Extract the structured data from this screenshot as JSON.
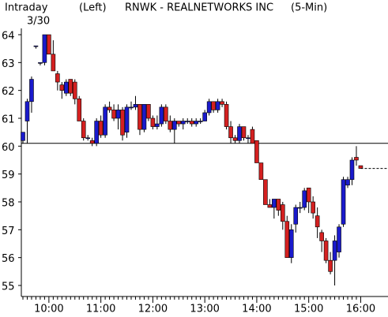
{
  "chart_data": {
    "type": "candlestick",
    "title": "RNWK - REALNETWORKS INC",
    "subtitle": "Intraday",
    "date": "3/30",
    "axis_side": "(Left)",
    "interval": "(5-Min)",
    "categories": [
      null,
      null,
      null,
      null,
      null,
      null,
      "10:00",
      null,
      null,
      null,
      null,
      null,
      null,
      null,
      null,
      null,
      null,
      null,
      "11:00",
      null,
      null,
      null,
      null,
      null,
      null,
      null,
      null,
      null,
      null,
      null,
      "12:00",
      null,
      null,
      null,
      null,
      null,
      null,
      null,
      null,
      null,
      null,
      null,
      "13:00",
      null,
      null,
      null,
      null,
      null,
      null,
      null,
      null,
      null,
      null,
      null,
      "14:00",
      null,
      null,
      null,
      null,
      null,
      null,
      null,
      null,
      null,
      null,
      null,
      "15:00",
      null,
      null,
      null,
      null,
      null,
      null,
      null,
      null,
      null,
      null,
      null,
      "16:00"
    ],
    "open": [
      60.2,
      60.9,
      61.6,
      63.6,
      63.0,
      63.0,
      64.0,
      63.3,
      62.6,
      62.2,
      61.9,
      62.4,
      62.3,
      61.7,
      60.9,
      60.3,
      60.2,
      60.1,
      60.9,
      60.4,
      61.4,
      61.3,
      61.0,
      61.3,
      60.5,
      61.4,
      61.4,
      61.5,
      60.6,
      61.5,
      61.0,
      60.7,
      60.8,
      61.4,
      60.9,
      60.6,
      60.9,
      60.8,
      60.9,
      60.9,
      60.8,
      60.9,
      60.9,
      61.2,
      61.6,
      61.3,
      61.6,
      61.5,
      60.7,
      60.3,
      60.2,
      60.7,
      60.3,
      60.6,
      60.2,
      59.4,
      58.8,
      57.9,
      57.8,
      58.1,
      57.9,
      57.3,
      56.0,
      57.2,
      57.8,
      57.8,
      58.5,
      58.0,
      57.5,
      56.9,
      56.6,
      55.9,
      55.9,
      56.2,
      57.2,
      58.6,
      58.8,
      59.6,
      59.3
    ],
    "high": [
      60.5,
      61.7,
      62.5,
      63.6,
      63.0,
      64.0,
      64.0,
      63.8,
      62.7,
      62.3,
      62.4,
      62.4,
      62.4,
      61.8,
      61.0,
      60.4,
      60.3,
      61.0,
      61.1,
      61.5,
      61.6,
      61.5,
      61.5,
      61.4,
      61.5,
      61.6,
      61.8,
      61.5,
      61.5,
      61.5,
      61.1,
      61.1,
      61.5,
      61.5,
      61.1,
      61.0,
      60.9,
      61.0,
      61.0,
      61.0,
      61.0,
      61.0,
      61.3,
      61.7,
      61.6,
      61.7,
      61.7,
      61.6,
      60.9,
      60.4,
      60.8,
      60.7,
      60.4,
      60.7,
      60.2,
      59.4,
      58.8,
      58.1,
      58.1,
      58.1,
      58.0,
      57.5,
      57.2,
      57.9,
      58.0,
      58.5,
      58.5,
      58.2,
      57.8,
      57.0,
      56.7,
      56.2,
      56.8,
      57.2,
      58.9,
      58.9,
      59.6,
      60.0,
      59.3
    ],
    "low": [
      60.1,
      60.1,
      61.2,
      63.5,
      62.9,
      62.9,
      63.3,
      62.7,
      62.0,
      61.7,
      61.8,
      61.8,
      61.5,
      60.9,
      60.2,
      60.2,
      60.0,
      60.0,
      60.3,
      60.3,
      61.2,
      60.9,
      60.6,
      60.2,
      60.3,
      61.3,
      61.3,
      60.4,
      60.5,
      60.9,
      60.6,
      60.6,
      60.7,
      60.8,
      60.5,
      60.1,
      60.7,
      60.6,
      60.8,
      60.7,
      60.7,
      60.8,
      60.9,
      61.1,
      61.2,
      61.2,
      61.4,
      60.6,
      60.1,
      60.1,
      60.1,
      60.2,
      60.1,
      60.1,
      59.4,
      58.8,
      57.9,
      57.8,
      57.4,
      57.5,
      57.0,
      56.0,
      55.8,
      56.9,
      57.6,
      57.7,
      57.6,
      57.4,
      56.7,
      56.2,
      55.8,
      55.4,
      55.0,
      56.0,
      57.1,
      58.5,
      58.6,
      59.3,
      59.2
    ],
    "close": [
      60.5,
      61.6,
      62.4,
      63.6,
      63.0,
      64.0,
      63.3,
      62.7,
      62.3,
      62.0,
      62.3,
      61.9,
      61.7,
      60.9,
      60.3,
      60.3,
      60.1,
      60.9,
      60.4,
      61.4,
      61.3,
      61.0,
      61.3,
      60.4,
      61.4,
      61.4,
      61.5,
      60.6,
      61.5,
      61.0,
      60.7,
      60.8,
      61.4,
      60.9,
      60.6,
      60.9,
      60.8,
      60.9,
      60.9,
      60.8,
      60.9,
      60.9,
      61.2,
      61.6,
      61.3,
      61.6,
      61.5,
      60.7,
      60.3,
      60.2,
      60.7,
      60.3,
      60.3,
      60.1,
      59.4,
      58.8,
      57.9,
      57.8,
      58.1,
      57.7,
      57.3,
      56.0,
      57.0,
      57.8,
      57.8,
      58.4,
      58.0,
      57.6,
      57.1,
      56.6,
      55.9,
      55.5,
      56.6,
      57.1,
      58.8,
      58.8,
      59.5,
      59.5,
      59.2
    ],
    "up_color": "#1a1acc",
    "down_color": "#d42020",
    "reference_line": 60.1,
    "ylim": [
      55,
      64
    ],
    "yticks": [
      55,
      56,
      57,
      58,
      59,
      60,
      61,
      62,
      63,
      64
    ]
  }
}
